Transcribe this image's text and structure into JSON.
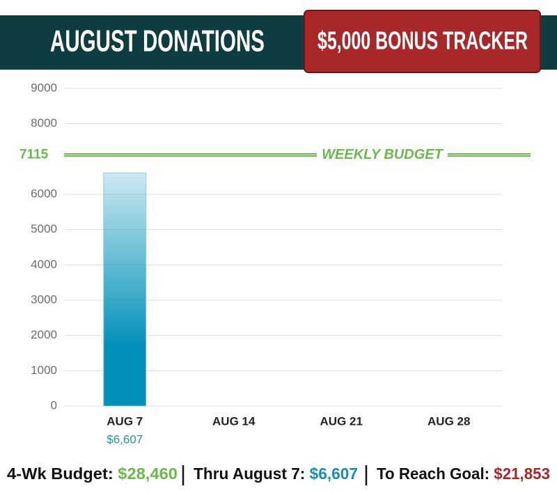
{
  "chart_data": {
    "type": "bar",
    "title": "AUGUST DONATIONS",
    "badge": "$5,000 BONUS TRACKER",
    "categories": [
      "AUG 7",
      "AUG 14",
      "AUG 21",
      "AUG 28"
    ],
    "values": [
      6607,
      null,
      null,
      null
    ],
    "value_labels": [
      "$6,607",
      null,
      null,
      null
    ],
    "color": "#0090b8",
    "ylim": [
      0,
      9000
    ],
    "yticks": [
      0,
      1000,
      2000,
      3000,
      4000,
      5000,
      6000,
      8000,
      9000
    ],
    "grid": true,
    "reference_line": {
      "value": 7115,
      "label": "WEEKLY BUDGET",
      "color": "#6ab94b"
    },
    "footer": [
      {
        "label": "4-Wk Budget:",
        "value": "$28,460",
        "color": "#6ab94b"
      },
      {
        "label": "Thru August 7:",
        "value": "$6,607",
        "color": "#1a8db3"
      },
      {
        "label": "To Reach Goal:",
        "value": "$21,853",
        "color": "#a8282a"
      }
    ]
  }
}
